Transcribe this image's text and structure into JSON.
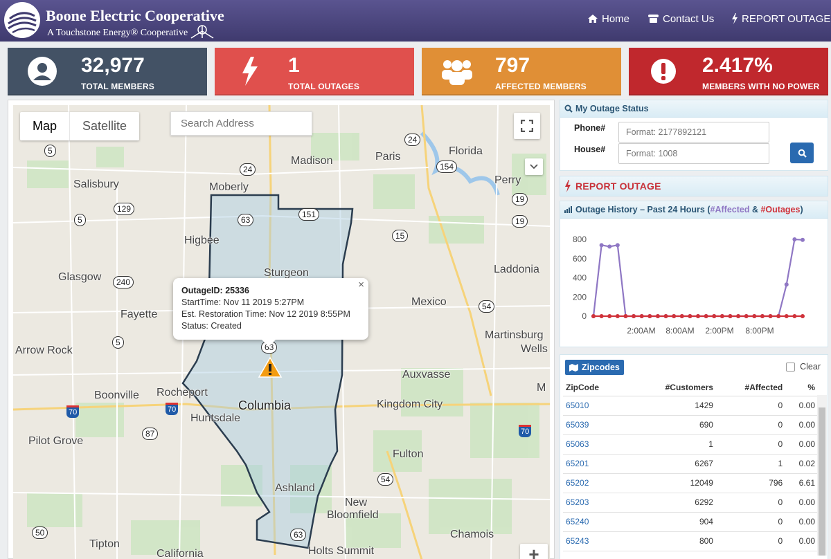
{
  "header": {
    "brand_name": "Boone Electric Cooperative",
    "brand_tagline": "A Touchstone Energy® Cooperative",
    "nav": {
      "home": "Home",
      "contact": "Contact Us",
      "report": "REPORT OUTAGE"
    }
  },
  "stats": [
    {
      "value": "32,977",
      "label": "TOTAL MEMBERS",
      "color": "#435265",
      "icon": "user-icon"
    },
    {
      "value": "1",
      "label": "TOTAL OUTAGES",
      "color": "#e0504d",
      "icon": "bolt-icon"
    },
    {
      "value": "797",
      "label": "AFFECTED MEMBERS",
      "color": "#e08f36",
      "icon": "group-icon"
    },
    {
      "value": "2.417%",
      "label": "MEMBERS WITH NO POWER",
      "color": "#c0282d",
      "icon": "warning-icon"
    }
  ],
  "map": {
    "type_map": "Map",
    "type_satellite": "Satellite",
    "search_placeholder": "Search Address",
    "places": {
      "salisbury": "Salisbury",
      "moberly": "Moberly",
      "madison": "Madison",
      "paris": "Paris",
      "florida": "Florida",
      "perry": "Perry",
      "higbee": "Higbee",
      "sturgeon": "Sturgeon",
      "glasgow": "Glasgow",
      "laddonia": "Laddonia",
      "fayette": "Fayette",
      "mexico": "Mexico",
      "martinsburg": "Martinsburg",
      "wells": "Wells",
      "arrowrock": "Arrow Rock",
      "auxvasse": "Auxvasse",
      "boonville": "Boonville",
      "rocheport": "Rocheport",
      "columbia": "Columbia",
      "kingdomcity": "Kingdom City",
      "huntsdale": "Huntsdale",
      "pilotgrove": "Pilot Grove",
      "fulton": "Fulton",
      "ashland": "Ashland",
      "new": "New",
      "bloomfield": "Bloomfield",
      "tipton": "Tipton",
      "chamois": "Chamois",
      "holtssummit": "Holts Summit",
      "california": "California",
      "m": "M"
    },
    "routes": {
      "r5a": "5",
      "r24a": "24",
      "r24b": "24",
      "r154": "154",
      "r129": "129",
      "r5b": "5",
      "r63a": "63",
      "r151": "151",
      "r19a": "19",
      "r19b": "19",
      "r15": "15",
      "r240": "240",
      "r54a": "54",
      "r5c": "5",
      "r63b": "63",
      "r87": "87",
      "r54b": "54",
      "r50": "50",
      "r63c": "63",
      "i70a": "70",
      "i70b": "70",
      "i70c": "70"
    },
    "popup": {
      "title": "OutageID: 25336",
      "start": "StartTime: Nov 11 2019 5:27PM",
      "restore": "Est. Restoration Time: Nov 12 2019 8:55PM",
      "status": "Status: Created"
    },
    "zoom_in": "+"
  },
  "status_panel": {
    "title": "My Outage Status",
    "phone_label": "Phone#",
    "phone_placeholder": "Format: 2177892121",
    "house_label": "House#",
    "house_placeholder": "Format: 1008"
  },
  "report_outage": "REPORT OUTAGE",
  "history": {
    "title_prefix": "Outage History – Past 24 Hours (",
    "affected": "#Affected",
    "amp": " & ",
    "outages": "#Outages",
    "title_suffix": ")"
  },
  "chart_data": {
    "type": "line",
    "x_ticks": [
      "2:00AM",
      "8:00AM",
      "2:00PM",
      "8:00PM"
    ],
    "y_ticks": [
      0,
      200,
      400,
      600,
      800
    ],
    "ylim": [
      0,
      800
    ],
    "series": [
      {
        "name": "#Affected",
        "color": "#8f77c4",
        "values": [
          0,
          740,
          725,
          740,
          0,
          0,
          0,
          0,
          0,
          0,
          0,
          0,
          0,
          0,
          0,
          0,
          0,
          0,
          0,
          0,
          0,
          0,
          0,
          0,
          330,
          800,
          795
        ]
      },
      {
        "name": "#Outages",
        "color": "#d0323a",
        "values": [
          0,
          0,
          0,
          0,
          0,
          0,
          0,
          0,
          0,
          0,
          0,
          0,
          0,
          0,
          0,
          0,
          0,
          0,
          0,
          0,
          0,
          0,
          0,
          0,
          0,
          0,
          0
        ]
      }
    ]
  },
  "zipcodes": {
    "button": "Zipcodes",
    "clear": "Clear",
    "headers": [
      "ZipCode",
      "#Customers",
      "#Affected",
      "%"
    ],
    "rows": [
      [
        "65010",
        "1429",
        "0",
        "0.00"
      ],
      [
        "65039",
        "690",
        "0",
        "0.00"
      ],
      [
        "65063",
        "1",
        "0",
        "0.00"
      ],
      [
        "65201",
        "6267",
        "1",
        "0.02"
      ],
      [
        "65202",
        "12049",
        "796",
        "6.61"
      ],
      [
        "65203",
        "6292",
        "0",
        "0.00"
      ],
      [
        "65240",
        "904",
        "0",
        "0.00"
      ],
      [
        "65243",
        "800",
        "0",
        "0.00"
      ]
    ]
  }
}
